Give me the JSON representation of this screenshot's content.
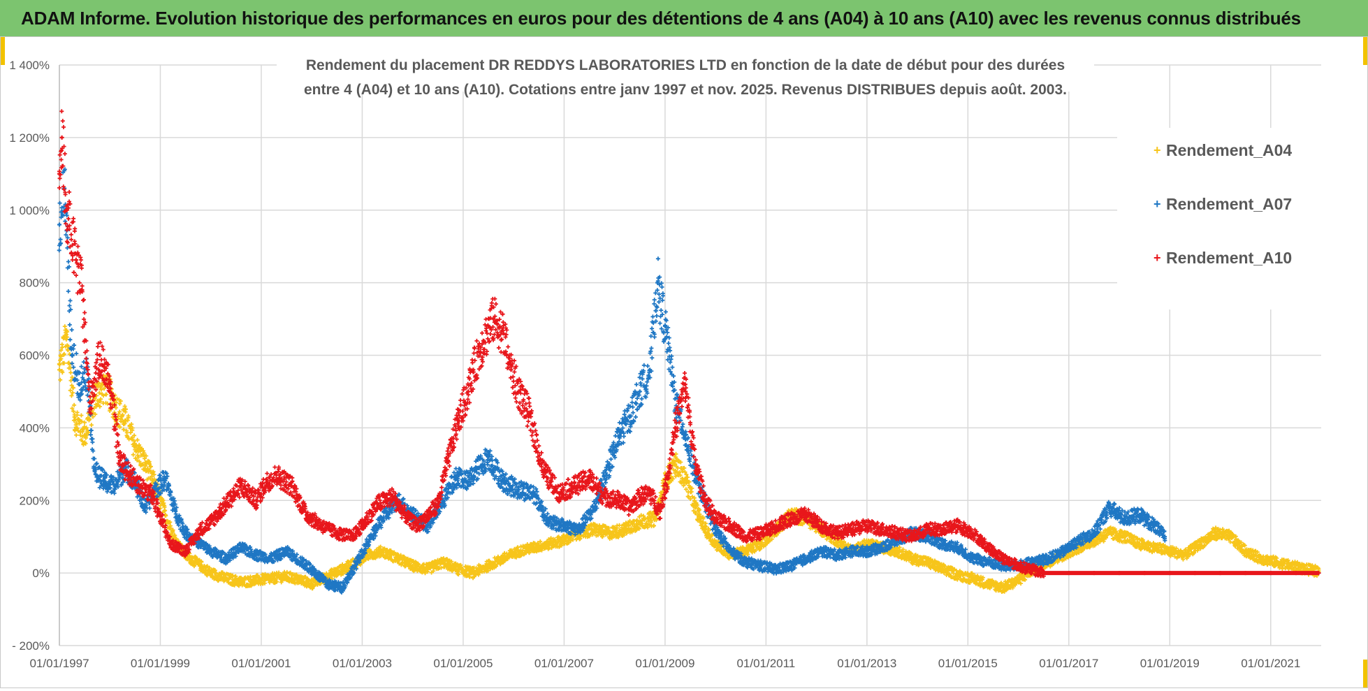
{
  "banner": {
    "title": "ADAM Informe. Evolution historique des performances en euros pour des détentions de 4 ans (A04) à 10 ans (A10) avec les revenus connus distribués"
  },
  "colors": {
    "a04": "#f7c51a",
    "a07": "#1f77c4",
    "a10": "#e8161b",
    "grid": "#d9d9d9",
    "banner": "#7cc46f",
    "text": "#595959"
  },
  "chart_data": {
    "type": "scatter",
    "title_lines": [
      "Rendement du placement DR REDDYS LABORATORIES LTD en fonction de la date de début pour des durées",
      "entre 4 (A04) et 10 ans (A10). Cotations entre janv 1997 et nov. 2025. Revenus DISTRIBUES depuis août. 2003."
    ],
    "xlabel": "",
    "ylabel": "",
    "xlim": [
      1997.0,
      2022.0
    ],
    "ylim": [
      -200,
      1400
    ],
    "y_ticks": [
      -200,
      0,
      200,
      400,
      600,
      800,
      1000,
      1200,
      1400
    ],
    "y_tick_labels": [
      "- 200%",
      "0%",
      "200%",
      "400%",
      "600%",
      "800%",
      "1 000%",
      "1 200%",
      "1 400%"
    ],
    "x_ticks": [
      1997,
      1999,
      2001,
      2003,
      2005,
      2007,
      2009,
      2011,
      2013,
      2015,
      2017,
      2019,
      2021
    ],
    "x_tick_labels": [
      "01/01/1997",
      "01/01/1999",
      "01/01/2001",
      "01/01/2003",
      "01/01/2005",
      "01/01/2007",
      "01/01/2009",
      "01/01/2011",
      "01/01/2013",
      "01/01/2015",
      "01/01/2017",
      "01/01/2019",
      "01/01/2021"
    ],
    "legend_position": "top-right",
    "marker": "+",
    "series": [
      {
        "name": "Rendement_A04",
        "color": "#f7c51a",
        "x": [
          1997.0,
          1997.15,
          1997.3,
          1997.5,
          1997.7,
          1997.9,
          1998.1,
          1998.3,
          1998.5,
          1998.7,
          1998.9,
          1999.1,
          1999.3,
          1999.5,
          1999.8,
          2000.0,
          2000.3,
          2000.6,
          2000.9,
          2001.2,
          2001.5,
          2001.8,
          2002.0,
          2002.3,
          2002.6,
          2002.9,
          2003.1,
          2003.4,
          2003.7,
          2004.0,
          2004.3,
          2004.6,
          2004.9,
          2005.2,
          2005.5,
          2005.8,
          2006.1,
          2006.4,
          2006.7,
          2007.0,
          2007.3,
          2007.6,
          2007.9,
          2008.2,
          2008.5,
          2008.8,
          2009.0,
          2009.2,
          2009.4,
          2009.6,
          2009.8,
          2010.0,
          2010.3,
          2010.6,
          2010.9,
          2011.2,
          2011.5,
          2011.8,
          2012.1,
          2012.4,
          2012.7,
          2013.0,
          2013.3,
          2013.6,
          2013.9,
          2014.2,
          2014.5,
          2014.8,
          2015.1,
          2015.4,
          2015.7,
          2016.0,
          2016.3,
          2016.6,
          2016.9,
          2017.2,
          2017.5,
          2017.8,
          2018.1,
          2018.4,
          2018.7,
          2019.0,
          2019.3,
          2019.6,
          2019.9,
          2020.2,
          2020.5,
          2020.8,
          2021.1,
          2021.4,
          2021.7,
          2021.95
        ],
        "y": [
          560,
          650,
          430,
          380,
          480,
          520,
          460,
          420,
          350,
          300,
          240,
          160,
          90,
          50,
          20,
          0,
          -15,
          -25,
          -20,
          -15,
          -10,
          -20,
          -30,
          -10,
          10,
          30,
          50,
          60,
          40,
          20,
          10,
          30,
          10,
          0,
          20,
          40,
          60,
          70,
          80,
          90,
          110,
          120,
          110,
          120,
          140,
          150,
          250,
          300,
          260,
          180,
          120,
          80,
          50,
          60,
          80,
          120,
          160,
          150,
          120,
          90,
          60,
          80,
          70,
          60,
          40,
          30,
          10,
          -5,
          -15,
          -30,
          -40,
          -20,
          10,
          30,
          50,
          70,
          90,
          110,
          100,
          80,
          70,
          60,
          50,
          80,
          110,
          100,
          60,
          40,
          30,
          20,
          10,
          5
        ]
      },
      {
        "name": "Rendement_A07",
        "color": "#1f77c4",
        "x": [
          1997.0,
          1997.1,
          1997.25,
          1997.4,
          1997.55,
          1997.7,
          1997.9,
          1998.1,
          1998.3,
          1998.5,
          1998.7,
          1998.9,
          1999.1,
          1999.3,
          1999.5,
          1999.8,
          2000.0,
          2000.3,
          2000.6,
          2000.9,
          2001.2,
          2001.5,
          2001.8,
          2002.0,
          2002.3,
          2002.6,
          2002.9,
          2003.1,
          2003.4,
          2003.7,
          2004.0,
          2004.3,
          2004.6,
          2004.9,
          2005.1,
          2005.3,
          2005.5,
          2005.8,
          2006.1,
          2006.4,
          2006.7,
          2007.0,
          2007.3,
          2007.6,
          2007.9,
          2008.1,
          2008.3,
          2008.5,
          2008.7,
          2008.85,
          2009.0,
          2009.2,
          2009.4,
          2009.6,
          2009.8,
          2010.0,
          2010.3,
          2010.6,
          2010.9,
          2011.2,
          2011.5,
          2011.8,
          2012.1,
          2012.4,
          2012.7,
          2013.0,
          2013.3,
          2013.6,
          2013.9,
          2014.2,
          2014.5,
          2014.8,
          2015.1,
          2015.4,
          2015.7,
          2016.0,
          2016.3,
          2016.6,
          2016.9,
          2017.2,
          2017.5,
          2017.8,
          2018.1,
          2018.4,
          2018.7,
          2018.9
        ],
        "y": [
          960,
          1060,
          600,
          520,
          560,
          280,
          250,
          240,
          290,
          250,
          180,
          230,
          260,
          170,
          110,
          80,
          60,
          40,
          70,
          50,
          40,
          60,
          30,
          10,
          -30,
          -40,
          30,
          80,
          150,
          200,
          160,
          130,
          200,
          270,
          250,
          290,
          320,
          250,
          230,
          220,
          140,
          130,
          120,
          180,
          300,
          380,
          430,
          500,
          560,
          800,
          680,
          480,
          380,
          270,
          190,
          120,
          60,
          30,
          20,
          10,
          20,
          40,
          60,
          50,
          60,
          60,
          70,
          90,
          110,
          100,
          80,
          70,
          40,
          30,
          20,
          20,
          30,
          40,
          60,
          90,
          110,
          180,
          150,
          160,
          130,
          100
        ]
      },
      {
        "name": "Rendement_A10",
        "color": "#e8161b",
        "x": [
          1997.0,
          1997.05,
          1997.15,
          1997.3,
          1997.45,
          1997.6,
          1997.8,
          1998.0,
          1998.2,
          1998.4,
          1998.6,
          1998.8,
          1999.0,
          1999.2,
          1999.5,
          1999.8,
          2000.0,
          2000.3,
          2000.6,
          2000.9,
          2001.1,
          2001.3,
          2001.6,
          2001.9,
          2002.2,
          2002.5,
          2002.8,
          2003.0,
          2003.3,
          2003.6,
          2003.9,
          2004.1,
          2004.3,
          2004.5,
          2004.7,
          2004.9,
          2005.1,
          2005.2,
          2005.4,
          2005.6,
          2005.8,
          2005.95,
          2006.1,
          2006.3,
          2006.6,
          2006.9,
          2007.2,
          2007.5,
          2007.8,
          2008.1,
          2008.3,
          2008.5,
          2008.7,
          2008.9,
          2009.05,
          2009.2,
          2009.4,
          2009.6,
          2009.8,
          2010.0,
          2010.3,
          2010.6,
          2010.9,
          2011.2,
          2011.5,
          2011.8,
          2012.1,
          2012.4,
          2012.7,
          2013.0,
          2013.3,
          2013.6,
          2013.9,
          2014.2,
          2014.5,
          2014.8,
          2015.1,
          2015.4,
          2015.7,
          2016.0,
          2016.5,
          2017.0,
          2017.5,
          2018.0,
          2018.5,
          2019.0,
          2019.5,
          2020.0,
          2020.5,
          2021.0,
          2021.5,
          2021.95
        ],
        "y": [
          1100,
          1200,
          1000,
          880,
          780,
          470,
          600,
          520,
          310,
          270,
          240,
          220,
          160,
          80,
          60,
          120,
          140,
          190,
          240,
          200,
          250,
          270,
          240,
          160,
          130,
          110,
          100,
          130,
          190,
          210,
          150,
          130,
          160,
          190,
          310,
          420,
          500,
          560,
          640,
          700,
          660,
          560,
          500,
          440,
          280,
          220,
          240,
          260,
          210,
          200,
          180,
          210,
          220,
          170,
          260,
          400,
          520,
          300,
          200,
          150,
          130,
          100,
          110,
          130,
          150,
          160,
          130,
          110,
          120,
          130,
          120,
          110,
          100,
          120,
          120,
          130,
          110,
          70,
          40,
          20,
          0,
          0,
          0,
          0,
          0,
          0,
          0,
          0,
          0,
          0,
          0,
          0
        ]
      }
    ]
  }
}
